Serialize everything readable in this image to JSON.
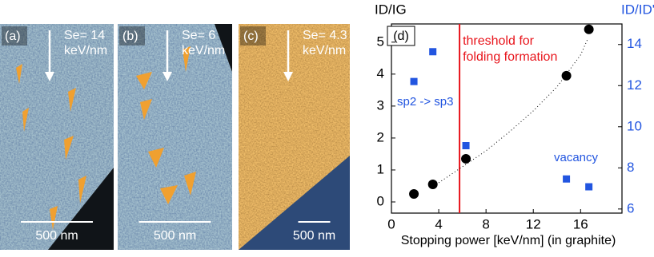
{
  "panels": [
    {
      "label": "(a)",
      "se": "Se= 14",
      "unit": "keV/nm",
      "scale": "500 nm"
    },
    {
      "label": "(b)",
      "se": "Se= 6",
      "unit": "keV/nm",
      "scale": "500 nm"
    },
    {
      "label": "(c)",
      "se": "Se= 4.3",
      "unit": "keV/nm",
      "scale": "500 nm"
    }
  ],
  "chart_data": {
    "type": "scatter",
    "panel_label": "(d)",
    "y_label": "ID/IG",
    "y2_label": "ID/ID'",
    "x_label": "Stopping power [keV/nm] (in graphite)",
    "xlim": [
      0,
      19.5
    ],
    "xticks": [
      0,
      4,
      8,
      12,
      16
    ],
    "ylim": [
      -0.35,
      5.57
    ],
    "yticks": [
      0,
      1,
      2,
      3,
      4,
      5
    ],
    "y2lim": [
      5.8,
      15
    ],
    "y2ticks": [
      6,
      8,
      10,
      12,
      14
    ],
    "y2_color": "#2255e0",
    "threshold": {
      "x": 5.76,
      "color": "#e8141b",
      "label": [
        "threshold for",
        "folding formation"
      ]
    },
    "annotations": [
      "sp2 -> sp3",
      "vacancy"
    ],
    "series": [
      {
        "marker": "circle",
        "color": "#000000",
        "x": [
          1.9,
          3.5,
          6.3,
          14.8,
          16.7
        ],
        "values": [
          0.25,
          0.55,
          1.35,
          3.95,
          5.4
        ]
      },
      {
        "marker": "square",
        "color": "#2255e0",
        "axis": "y2",
        "x": [
          1.9,
          3.5,
          6.3,
          14.8,
          16.7
        ],
        "values": [
          12.2,
          13.65,
          9.08,
          7.46,
          7.08
        ]
      },
      {
        "marker": "dotted-line",
        "color": "#000000",
        "x": [
          4,
          6,
          8,
          10,
          12,
          14,
          16,
          16.6
        ],
        "values": [
          0.6,
          1.1,
          1.6,
          2.2,
          2.85,
          3.6,
          4.6,
          5.1
        ]
      }
    ]
  }
}
